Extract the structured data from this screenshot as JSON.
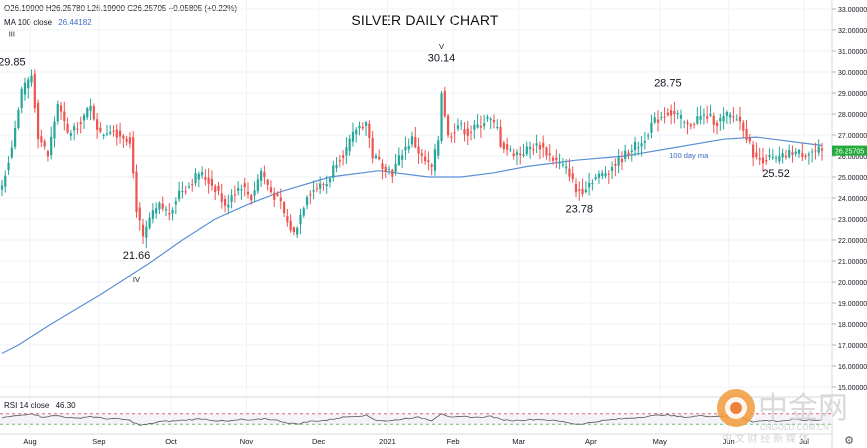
{
  "header": {
    "ohlc": "O26.19900 H26.25780 L26.19900 C26.25705 +0.05805 (+0.22%)",
    "ma_label": "MA 100 close",
    "ma_value": "26.44182",
    "rsi_label": "RSI 14 close",
    "rsi_value": "46.30"
  },
  "colors": {
    "up": "#26a69a",
    "down": "#ef5350",
    "ma": "#5b8fd6",
    "rsi": "#555555",
    "badge": "#22ab3a"
  },
  "watermark": {
    "brand": "中金网",
    "domain": "CNGOLD.COM.CN",
    "tagline": "中 文 财 经 新 媒 体"
  },
  "chart_data": {
    "type": "candlestick",
    "title": "SILVER DAILY CHART",
    "ylim": [
      15,
      33
    ],
    "y_ticks": [
      "15.00000",
      "16.00000",
      "17.00000",
      "18.00000",
      "19.00000",
      "20.00000",
      "21.00000",
      "22.00000",
      "23.00000",
      "24.00000",
      "25.00000",
      "26.00000",
      "27.00000",
      "28.00000",
      "29.00000",
      "30.00000",
      "31.00000",
      "32.00000",
      "33.00000"
    ],
    "x_ticks": [
      "Aug",
      "Sep",
      "Oct",
      "Nov",
      "Dec",
      "2021",
      "Feb",
      "Mar",
      "Apr",
      "May",
      "Jun",
      "Jul"
    ],
    "last_price": "26.25705",
    "annotations": [
      {
        "text": "III",
        "day": 3,
        "price": 31.7
      },
      {
        "text": "29.85",
        "day": 3,
        "price": 30.3
      },
      {
        "text": "V",
        "day": 134,
        "price": 31.1
      },
      {
        "text": "30.14",
        "day": 134,
        "price": 30.5
      },
      {
        "text": "28.75",
        "day": 203,
        "price": 29.3
      },
      {
        "text": "21.66",
        "day": 41,
        "price": 21.1
      },
      {
        "text": "IV",
        "day": 41,
        "price": 20.0
      },
      {
        "text": "23.78",
        "day": 176,
        "price": 23.3
      },
      {
        "text": "25.52",
        "day": 236,
        "price": 25.0
      },
      {
        "text": "100 day ma",
        "day": 204,
        "price": 25.9
      }
    ],
    "ma100": [
      [
        0,
        16.6
      ],
      [
        5,
        17.0
      ],
      [
        15,
        18.0
      ],
      [
        30,
        19.4
      ],
      [
        45,
        20.9
      ],
      [
        55,
        22.0
      ],
      [
        65,
        23.0
      ],
      [
        75,
        23.7
      ],
      [
        85,
        24.3
      ],
      [
        100,
        25.0
      ],
      [
        115,
        25.3
      ],
      [
        130,
        25.0
      ],
      [
        140,
        25.0
      ],
      [
        150,
        25.2
      ],
      [
        160,
        25.5
      ],
      [
        175,
        25.8
      ],
      [
        190,
        26.0
      ],
      [
        205,
        26.4
      ],
      [
        220,
        26.8
      ],
      [
        230,
        26.9
      ],
      [
        245,
        26.6
      ],
      [
        250,
        26.5
      ]
    ],
    "series": [
      [
        0,
        24.6
      ],
      [
        3,
        26.5
      ],
      [
        6,
        29.0
      ],
      [
        9,
        29.85
      ],
      [
        11,
        27.0
      ],
      [
        14,
        26.0
      ],
      [
        17,
        28.5
      ],
      [
        20,
        27.0
      ],
      [
        23,
        27.5
      ],
      [
        27,
        28.3
      ],
      [
        30,
        27.0
      ],
      [
        33,
        27.3
      ],
      [
        36,
        27.0
      ],
      [
        39,
        26.8
      ],
      [
        41,
        23.5
      ],
      [
        43,
        22.0
      ],
      [
        45,
        23.0
      ],
      [
        48,
        23.6
      ],
      [
        51,
        23.3
      ],
      [
        54,
        24.3
      ],
      [
        57,
        24.6
      ],
      [
        60,
        25.2
      ],
      [
        63,
        24.8
      ],
      [
        66,
        24.3
      ],
      [
        68,
        23.5
      ],
      [
        70,
        24.2
      ],
      [
        73,
        24.6
      ],
      [
        76,
        24.0
      ],
      [
        79,
        25.3
      ],
      [
        82,
        24.3
      ],
      [
        85,
        23.7
      ],
      [
        87,
        22.8
      ],
      [
        89,
        22.3
      ],
      [
        91,
        23.2
      ],
      [
        93,
        24.2
      ],
      [
        96,
        24.5
      ],
      [
        99,
        24.7
      ],
      [
        102,
        25.8
      ],
      [
        105,
        26.3
      ],
      [
        108,
        27.3
      ],
      [
        111,
        27.6
      ],
      [
        113,
        26.0
      ],
      [
        116,
        25.6
      ],
      [
        119,
        25.2
      ],
      [
        122,
        26.2
      ],
      [
        125,
        26.8
      ],
      [
        128,
        25.9
      ],
      [
        131,
        25.4
      ],
      [
        133,
        26.8
      ],
      [
        134,
        29.1
      ],
      [
        136,
        26.9
      ],
      [
        139,
        27.5
      ],
      [
        142,
        27.1
      ],
      [
        145,
        27.4
      ],
      [
        148,
        27.8
      ],
      [
        151,
        27.3
      ],
      [
        152,
        26.6
      ],
      [
        155,
        26.2
      ],
      [
        158,
        26.1
      ],
      [
        161,
        26.4
      ],
      [
        164,
        26.5
      ],
      [
        167,
        26.0
      ],
      [
        170,
        25.6
      ],
      [
        173,
        25.2
      ],
      [
        175,
        24.3
      ],
      [
        177,
        24.4
      ],
      [
        180,
        24.9
      ],
      [
        183,
        25.1
      ],
      [
        186,
        25.5
      ],
      [
        189,
        25.9
      ],
      [
        192,
        26.4
      ],
      [
        195,
        26.6
      ],
      [
        198,
        27.5
      ],
      [
        201,
        27.9
      ],
      [
        203,
        28.1
      ],
      [
        206,
        27.9
      ],
      [
        209,
        27.4
      ],
      [
        212,
        27.8
      ],
      [
        215,
        27.9
      ],
      [
        218,
        27.6
      ],
      [
        221,
        27.9
      ],
      [
        224,
        27.8
      ],
      [
        226,
        27.4
      ],
      [
        228,
        26.5
      ],
      [
        230,
        25.8
      ],
      [
        233,
        25.9
      ],
      [
        236,
        25.8
      ],
      [
        239,
        26.0
      ],
      [
        241,
        26.2
      ],
      [
        244,
        26.1
      ],
      [
        247,
        26.2
      ],
      [
        250,
        26.257
      ]
    ],
    "rsi": {
      "ylim": [
        0,
        100
      ],
      "levels": [
        70,
        30
      ],
      "values": [
        [
          0,
          55
        ],
        [
          5,
          63
        ],
        [
          9,
          72
        ],
        [
          12,
          58
        ],
        [
          17,
          63
        ],
        [
          22,
          52
        ],
        [
          27,
          60
        ],
        [
          31,
          52
        ],
        [
          36,
          50
        ],
        [
          39,
          44
        ],
        [
          42,
          26
        ],
        [
          44,
          28
        ],
        [
          48,
          40
        ],
        [
          52,
          42
        ],
        [
          57,
          47
        ],
        [
          61,
          51
        ],
        [
          65,
          44
        ],
        [
          69,
          41
        ],
        [
          73,
          48
        ],
        [
          76,
          44
        ],
        [
          80,
          52
        ],
        [
          84,
          44
        ],
        [
          88,
          33
        ],
        [
          90,
          31
        ],
        [
          94,
          41
        ],
        [
          99,
          45
        ],
        [
          103,
          55
        ],
        [
          107,
          61
        ],
        [
          111,
          64
        ],
        [
          114,
          46
        ],
        [
          118,
          42
        ],
        [
          123,
          52
        ],
        [
          127,
          56
        ],
        [
          131,
          45
        ],
        [
          134,
          72
        ],
        [
          137,
          55
        ],
        [
          141,
          59
        ],
        [
          145,
          56
        ],
        [
          149,
          61
        ],
        [
          152,
          48
        ],
        [
          156,
          44
        ],
        [
          160,
          47
        ],
        [
          164,
          49
        ],
        [
          168,
          44
        ],
        [
          172,
          38
        ],
        [
          175,
          30
        ],
        [
          178,
          33
        ],
        [
          182,
          42
        ],
        [
          186,
          47
        ],
        [
          190,
          52
        ],
        [
          194,
          56
        ],
        [
          198,
          62
        ],
        [
          202,
          67
        ],
        [
          205,
          61
        ],
        [
          209,
          57
        ],
        [
          213,
          63
        ],
        [
          217,
          60
        ],
        [
          221,
          63
        ],
        [
          225,
          59
        ],
        [
          229,
          40
        ],
        [
          233,
          44
        ],
        [
          237,
          42
        ],
        [
          241,
          47
        ],
        [
          245,
          45
        ],
        [
          250,
          46
        ]
      ]
    }
  }
}
